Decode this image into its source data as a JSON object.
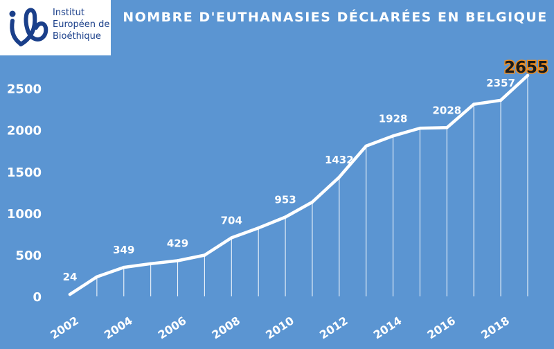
{
  "logo": {
    "lines": [
      "Institut",
      "Européen de",
      "Bioéthique"
    ]
  },
  "colors": {
    "background": "#5b95d2",
    "line": "#ffffff",
    "text": "#ffffff",
    "logo_text": "#1a3f8a",
    "highlight_text": "#1a1a1a",
    "highlight_glow": "#f28c1a"
  },
  "chart_data": {
    "type": "line",
    "title": "NOMBRE D'EUTHANASIES DÉCLARÉES EN BELGIQUE",
    "xlabel": "",
    "ylabel": "",
    "x": [
      2002,
      2003,
      2004,
      2005,
      2006,
      2007,
      2008,
      2009,
      2010,
      2011,
      2012,
      2013,
      2014,
      2015,
      2016,
      2017,
      2018,
      2019
    ],
    "values": [
      24,
      235,
      349,
      393,
      429,
      495,
      704,
      822,
      953,
      1133,
      1432,
      1807,
      1928,
      2022,
      2028,
      2309,
      2357,
      2655
    ],
    "data_labels": [
      {
        "year": 2002,
        "text": "24"
      },
      {
        "year": 2004,
        "text": "349"
      },
      {
        "year": 2006,
        "text": "429"
      },
      {
        "year": 2008,
        "text": "704"
      },
      {
        "year": 2010,
        "text": "953"
      },
      {
        "year": 2012,
        "text": "1432"
      },
      {
        "year": 2014,
        "text": "1928"
      },
      {
        "year": 2016,
        "text": "2028"
      },
      {
        "year": 2018,
        "text": "2357"
      },
      {
        "year": 2019,
        "text": "2655",
        "highlight": true
      }
    ],
    "x_ticks": [
      2002,
      2004,
      2006,
      2008,
      2010,
      2012,
      2014,
      2016,
      2018
    ],
    "y_ticks": [
      0,
      500,
      1000,
      1500,
      2000,
      2500
    ],
    "xlim": [
      2002,
      2019
    ],
    "ylim": [
      0,
      2655
    ],
    "grid": false,
    "drop_lines": true,
    "legend": "none"
  }
}
